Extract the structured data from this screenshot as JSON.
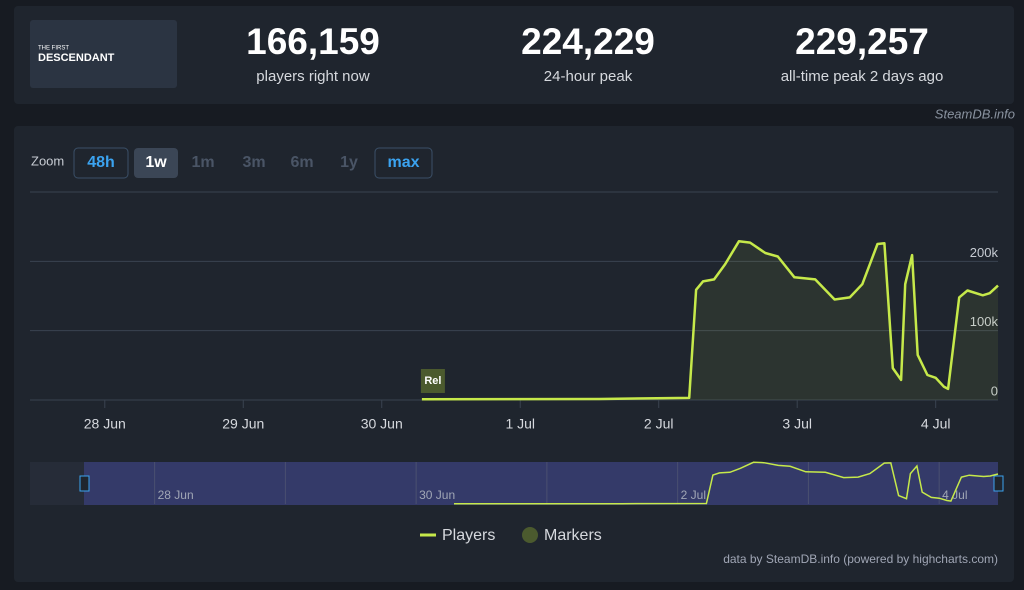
{
  "header": {
    "game_logo": [
      "THE FIRST",
      "DESCENDANT"
    ],
    "stats": [
      {
        "value": "166,159",
        "label": "players right now"
      },
      {
        "value": "224,229",
        "label": "24-hour peak"
      },
      {
        "value": "229,257",
        "label": "all-time peak 2 days ago"
      }
    ],
    "source": "SteamDB.info"
  },
  "zoom": {
    "label": "Zoom",
    "options": [
      "48h",
      "1w",
      "1m",
      "3m",
      "6m",
      "1y",
      "max"
    ]
  },
  "chart_data": {
    "type": "line",
    "x": [
      30.29,
      31.57,
      32.22,
      32.27,
      32.32,
      32.4,
      32.48,
      32.58,
      32.66,
      32.77,
      32.86,
      32.98,
      33.13,
      33.27,
      33.38,
      33.47,
      33.58,
      33.63,
      33.69,
      33.75,
      33.78,
      33.83,
      33.87,
      33.94,
      34.0,
      34.06,
      34.09,
      34.17,
      34.23,
      34.34,
      34.39,
      34.45
    ],
    "series": [
      {
        "name": "Players",
        "color": "#c6e94a",
        "values": [
          1000,
          1500,
          3000,
          159000,
          171000,
          174000,
          196000,
          229000,
          227000,
          212000,
          207000,
          177000,
          174000,
          145000,
          148000,
          167000,
          225000,
          226000,
          46000,
          29000,
          167000,
          209000,
          65000,
          36000,
          32000,
          19000,
          16000,
          148000,
          158000,
          151000,
          154000,
          165000
        ]
      }
    ],
    "markers": {
      "name": "Markers",
      "color": "#4b5a2e",
      "points": [
        {
          "x": 30.29,
          "label": "Rel"
        }
      ]
    },
    "xlim": [
      27.46,
      34.45
    ],
    "xticks": [
      {
        "value": 28,
        "label": "28 Jun"
      },
      {
        "value": 29,
        "label": "29 Jun"
      },
      {
        "value": 30,
        "label": "30 Jun"
      },
      {
        "value": 31,
        "label": "1 Jul"
      },
      {
        "value": 32,
        "label": "2 Jul"
      },
      {
        "value": 33,
        "label": "3 Jul"
      },
      {
        "value": 34,
        "label": "4 Jul"
      }
    ],
    "ylim": [
      0,
      300000
    ],
    "yticks": [
      0,
      {
        "value": 100000,
        "label": "100k"
      },
      {
        "value": 200000,
        "label": "200k"
      }
    ],
    "grid": true,
    "credit": "data by SteamDB.info (powered by highcharts.com)"
  }
}
